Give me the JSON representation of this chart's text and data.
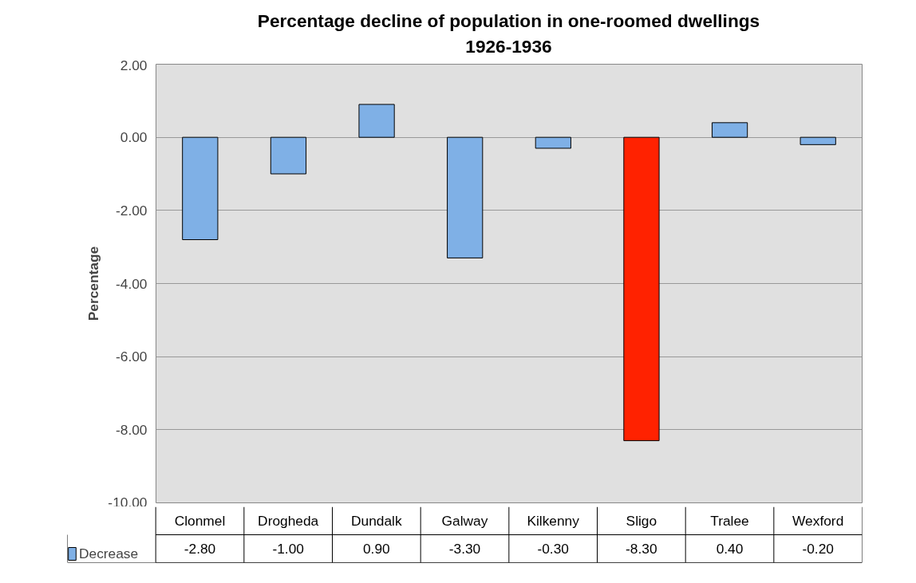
{
  "chart_data": {
    "type": "bar",
    "title": "Percentage decline of population in one-roomed dwellings\n1926-1936",
    "ylabel": "Percentage",
    "categories": [
      "Clonmel",
      "Drogheda",
      "Dundalk",
      "Galway",
      "Kilkenny",
      "Sligo",
      "Tralee",
      "Wexford"
    ],
    "series": [
      {
        "name": "Decrease",
        "color": "#7fb0e6",
        "colors": [
          "#7fb0e6",
          "#7fb0e6",
          "#7fb0e6",
          "#7fb0e6",
          "#7fb0e6",
          "#ff2200",
          "#7fb0e6",
          "#7fb0e6"
        ],
        "values": [
          -2.8,
          -1.0,
          0.9,
          -3.3,
          -0.3,
          -8.3,
          0.4,
          -0.2
        ],
        "value_labels": [
          "-2.80",
          "-1.00",
          "0.90",
          "-3.30",
          "-0.30",
          "-8.30",
          "0.40",
          "-0.20"
        ]
      }
    ],
    "ylim": [
      -10,
      2
    ],
    "yticks": [
      {
        "value": -10,
        "label": "-10.00"
      },
      {
        "value": -8,
        "label": "-8.00"
      },
      {
        "value": -6,
        "label": "-6.00"
      },
      {
        "value": -4,
        "label": "-4.00"
      },
      {
        "value": -2,
        "label": "-2.00"
      },
      {
        "value": 0,
        "label": "0.00"
      },
      {
        "value": 2,
        "label": "2.00"
      }
    ],
    "grid": "y",
    "legend": "bottom left"
  }
}
